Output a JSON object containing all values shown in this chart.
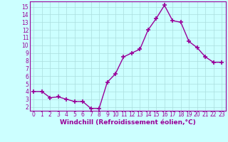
{
  "x": [
    0,
    1,
    2,
    3,
    4,
    5,
    6,
    7,
    8,
    9,
    10,
    11,
    12,
    13,
    14,
    15,
    16,
    17,
    18,
    19,
    20,
    21,
    22,
    23
  ],
  "y": [
    4.0,
    4.0,
    3.2,
    3.3,
    3.0,
    2.7,
    2.7,
    1.8,
    1.8,
    5.2,
    6.3,
    8.5,
    9.0,
    9.5,
    12.0,
    13.5,
    15.2,
    13.2,
    13.0,
    10.5,
    9.7,
    8.5,
    7.8,
    7.8
  ],
  "line_color": "#990099",
  "marker": "+",
  "marker_size": 4,
  "marker_lw": 1.2,
  "bg_color": "#ccffff",
  "grid_color": "#aadddd",
  "xlabel": "Windchill (Refroidissement éolien,°C)",
  "xlabel_color": "#990099",
  "tick_color": "#990099",
  "ylim": [
    1.5,
    15.7
  ],
  "xlim": [
    -0.5,
    23.5
  ],
  "yticks": [
    2,
    3,
    4,
    5,
    6,
    7,
    8,
    9,
    10,
    11,
    12,
    13,
    14,
    15
  ],
  "xticks": [
    0,
    1,
    2,
    3,
    4,
    5,
    6,
    7,
    8,
    9,
    10,
    11,
    12,
    13,
    14,
    15,
    16,
    17,
    18,
    19,
    20,
    21,
    22,
    23
  ],
  "spine_color": "#990099",
  "linewidth": 1.0,
  "tick_fontsize": 5.5,
  "xlabel_fontsize": 6.5
}
